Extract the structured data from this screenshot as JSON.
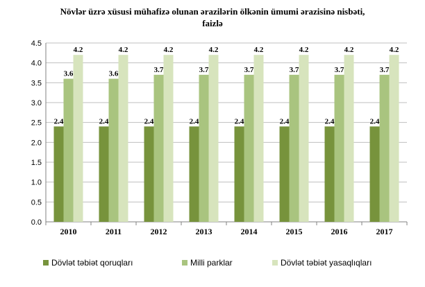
{
  "chart_data": {
    "type": "bar",
    "title_lines": [
      "Növlər  üzrə xüsusi mühafizə  olunan  ərazilərin ölkənin ümumi  ərazisinə nisbəti,",
      "faizlə"
    ],
    "categories": [
      "2010",
      "2011",
      "2012",
      "2013",
      "2014",
      "2015",
      "2016",
      "2017"
    ],
    "series": [
      {
        "name": "Dövlət təbiət qoruqları",
        "values": [
          2.4,
          2.4,
          2.4,
          2.4,
          2.4,
          2.4,
          2.4,
          2.4
        ],
        "labels": [
          "2.4",
          "2.4",
          "2.4",
          "2.4",
          "2.4",
          "2.4",
          "2.4",
          "2.4"
        ],
        "color": "#77933c"
      },
      {
        "name": "Milli parklar",
        "values": [
          3.6,
          3.6,
          3.7,
          3.7,
          3.7,
          3.7,
          3.7,
          3.7
        ],
        "labels": [
          "3.6",
          "3.6",
          "3.7",
          "3.7",
          "3.7",
          "3.7",
          "3.7",
          "3.7"
        ],
        "color": "#a9c47f"
      },
      {
        "name": "Dövlət təbiət yasaqlıqları",
        "values": [
          4.2,
          4.2,
          4.2,
          4.2,
          4.2,
          4.2,
          4.2,
          4.2
        ],
        "labels": [
          "4.2",
          "4.2",
          "4.2",
          "4.2",
          "4.2",
          "4.2",
          "4.2",
          "4.2"
        ],
        "color": "#d7e4bd"
      }
    ],
    "ylim": [
      0,
      4.5
    ],
    "yticks": [
      "0.0",
      "0.5",
      "1.0",
      "1.5",
      "2.0",
      "2.5",
      "3.0",
      "3.5",
      "4.0",
      "4.5"
    ],
    "grid": true,
    "legend_position": "bottom"
  }
}
